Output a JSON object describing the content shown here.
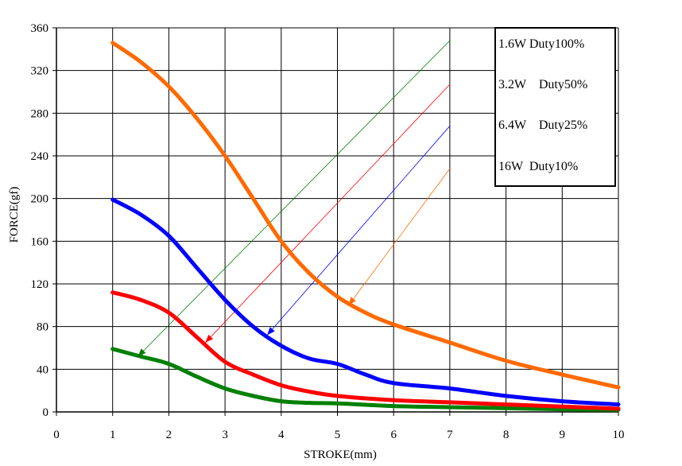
{
  "chart_data": {
    "type": "line",
    "title": "",
    "xlabel": "STROKE(mm)",
    "ylabel": "FORCE(gf)",
    "xlim": [
      0,
      10
    ],
    "ylim": [
      0,
      360
    ],
    "x_ticks": [
      0,
      1,
      2,
      3,
      4,
      5,
      6,
      7,
      8,
      9,
      10
    ],
    "y_ticks": [
      0,
      40,
      80,
      120,
      160,
      200,
      240,
      280,
      320,
      360
    ],
    "grid": true,
    "legend_placement": "top-right",
    "series": [
      {
        "name": "1.6W Duty100%",
        "color": "#008000",
        "x": [
          1,
          1.5,
          2,
          2.5,
          3,
          3.5,
          4,
          4.5,
          5,
          6,
          7,
          8,
          9,
          10
        ],
        "y": [
          59,
          52,
          45,
          33,
          22,
          15,
          10,
          8.5,
          8,
          5.5,
          4.5,
          3.5,
          2.5,
          2
        ],
        "legend_arrow": {
          "from": [
            7.0,
            348
          ],
          "to": [
            1.45,
            52
          ]
        }
      },
      {
        "name": "3.2W    Duty50%",
        "color": "#ff0000",
        "x": [
          1,
          1.5,
          2,
          2.5,
          3,
          3.5,
          4,
          4.5,
          5,
          6,
          7,
          8,
          9,
          10
        ],
        "y": [
          112,
          105,
          93,
          70,
          47,
          35,
          25,
          19,
          15,
          11,
          9,
          7,
          5,
          3
        ],
        "legend_arrow": {
          "from": [
            7.0,
            307
          ],
          "to": [
            2.65,
            65
          ]
        }
      },
      {
        "name": "6.4W    Duty25%",
        "color": "#0000ff",
        "x": [
          1,
          1.5,
          2,
          2.5,
          3,
          3.5,
          4,
          4.5,
          5,
          5.5,
          6,
          7,
          8,
          9,
          10
        ],
        "y": [
          199,
          185,
          165,
          135,
          105,
          80,
          62,
          50,
          45,
          35,
          27,
          22,
          15,
          10,
          7
        ],
        "legend_arrow": {
          "from": [
            7.0,
            268
          ],
          "to": [
            3.75,
            72
          ]
        }
      },
      {
        "name": "16W  Duty10%",
        "color": "#ff6a00",
        "x": [
          1,
          1.5,
          2,
          2.5,
          3,
          3.5,
          4,
          4.5,
          5,
          5.5,
          6,
          7,
          8,
          9,
          10
        ],
        "y": [
          346,
          328,
          305,
          275,
          240,
          200,
          160,
          130,
          108,
          93,
          82,
          65,
          48,
          35,
          23
        ],
        "legend_arrow": {
          "from": [
            7.0,
            228
          ],
          "to": [
            5.2,
            100
          ]
        }
      }
    ]
  }
}
